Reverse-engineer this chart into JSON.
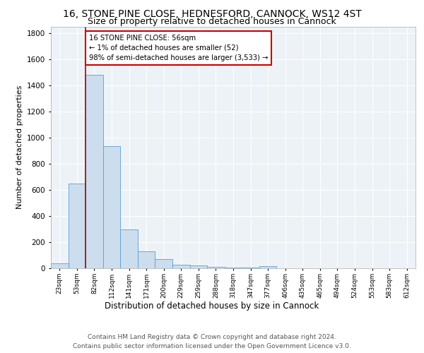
{
  "title1": "16, STONE PINE CLOSE, HEDNESFORD, CANNOCK, WS12 4ST",
  "title2": "Size of property relative to detached houses in Cannock",
  "xlabel": "Distribution of detached houses by size in Cannock",
  "ylabel": "Number of detached properties",
  "bin_labels": [
    "23sqm",
    "53sqm",
    "82sqm",
    "112sqm",
    "141sqm",
    "171sqm",
    "200sqm",
    "229sqm",
    "259sqm",
    "288sqm",
    "318sqm",
    "347sqm",
    "377sqm",
    "406sqm",
    "435sqm",
    "465sqm",
    "494sqm",
    "524sqm",
    "553sqm",
    "583sqm",
    "612sqm"
  ],
  "bar_heights": [
    40,
    650,
    1480,
    935,
    295,
    130,
    68,
    25,
    20,
    10,
    5,
    5,
    18,
    0,
    0,
    0,
    0,
    0,
    0,
    0,
    0
  ],
  "bar_color": "#ccdded",
  "bar_edge_color": "#5a9fd4",
  "vline_color": "#aa0000",
  "annotation_text": "16 STONE PINE CLOSE: 56sqm\n← 1% of detached houses are smaller (52)\n98% of semi-detached houses are larger (3,533) →",
  "annotation_box_color": "#ffffff",
  "annotation_box_edge": "#cc0000",
  "ylim": [
    0,
    1850
  ],
  "yticks": [
    0,
    200,
    400,
    600,
    800,
    1000,
    1200,
    1400,
    1600,
    1800
  ],
  "footer": "Contains HM Land Registry data © Crown copyright and database right 2024.\nContains public sector information licensed under the Open Government Licence v3.0.",
  "plot_bg_color": "#edf2f7",
  "title1_fontsize": 10,
  "title2_fontsize": 9,
  "xlabel_fontsize": 8.5,
  "ylabel_fontsize": 8,
  "footer_fontsize": 6.5
}
